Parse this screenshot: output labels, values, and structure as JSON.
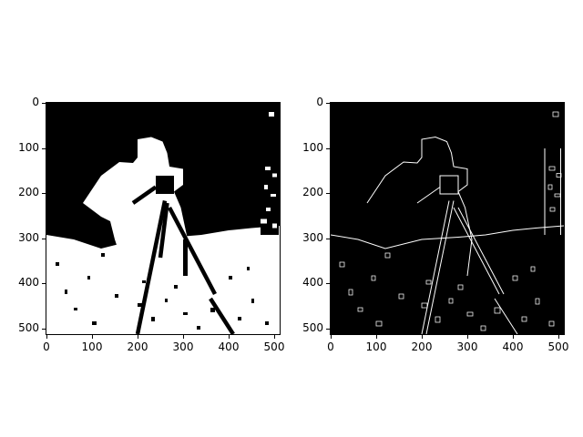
{
  "figure": {
    "panels": [
      {
        "id": "left",
        "description_kind": "binary-threshold",
        "x_ticks": [
          "0",
          "100",
          "200",
          "300",
          "400",
          "500"
        ],
        "y_ticks": [
          "0",
          "100",
          "200",
          "300",
          "400",
          "500"
        ]
      },
      {
        "id": "right",
        "description_kind": "edge-outline",
        "x_ticks": [
          "0",
          "100",
          "200",
          "300",
          "400",
          "500"
        ],
        "y_ticks": [
          "0",
          "100",
          "200",
          "300",
          "400",
          "500"
        ]
      }
    ],
    "colors": {
      "background": "#ffffff",
      "ink": "#000000",
      "foreground": "#ffffff"
    }
  }
}
